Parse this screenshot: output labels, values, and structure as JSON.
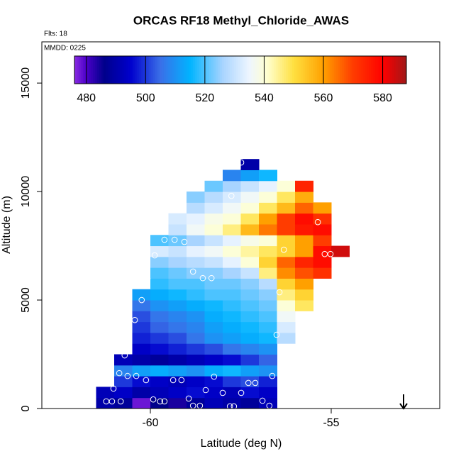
{
  "chart_data": {
    "type": "heatmap",
    "title": "ORCAS RF18 Methyl_Chloride_AWAS",
    "subtitle": "Flts: 18",
    "annotation": "MMDD: 0225",
    "x_label": "Latitude (deg N)",
    "y_label": "Altitude (m)",
    "xlim": [
      -63,
      -52
    ],
    "xticks": [
      -60,
      -55
    ],
    "ylim": [
      0,
      16900
    ],
    "yticks": [
      0,
      5000,
      10000,
      15000
    ],
    "zlim": [
      476,
      588
    ],
    "zticks": [
      480,
      500,
      520,
      540,
      560,
      580
    ],
    "colorscale": [
      {
        "value": 476,
        "color": "#8a2be2"
      },
      {
        "value": 480,
        "color": "#4b00c8"
      },
      {
        "value": 486,
        "color": "#00008b"
      },
      {
        "value": 495,
        "color": "#0000cd"
      },
      {
        "value": 505,
        "color": "#3a6fe8"
      },
      {
        "value": 515,
        "color": "#00b4ff"
      },
      {
        "value": 526,
        "color": "#a8d4ff"
      },
      {
        "value": 535,
        "color": "#eef6ff"
      },
      {
        "value": 541,
        "color": "#ffffd0"
      },
      {
        "value": 550,
        "color": "#ffe040"
      },
      {
        "value": 560,
        "color": "#ffa000"
      },
      {
        "value": 570,
        "color": "#ff3c00"
      },
      {
        "value": 580,
        "color": "#ff0000"
      },
      {
        "value": 588,
        "color": "#a01818"
      }
    ],
    "xbins": [
      -61.5,
      -61,
      -60.5,
      -60,
      -59.5,
      -59,
      -58.5,
      -58,
      -57.5,
      -57,
      -56.5,
      -56,
      -55.5,
      -55,
      -54.5
    ],
    "ybins": [
      0,
      500,
      1000,
      1500,
      2000,
      2500,
      3000,
      3500,
      4000,
      4500,
      5000,
      5500,
      6000,
      6500,
      7000,
      7500,
      8000,
      8500,
      9000,
      9500,
      10000,
      10500,
      11000,
      11500
    ],
    "z": [
      [
        490,
        488,
        478,
        486,
        484,
        488,
        492,
        490,
        488,
        492,
        null,
        null,
        null,
        null
      ],
      [
        492,
        494,
        490,
        492,
        494,
        496,
        494,
        492,
        496,
        494,
        null,
        null,
        null,
        null
      ],
      [
        null,
        500,
        496,
        494,
        492,
        494,
        496,
        500,
        502,
        498,
        null,
        null,
        null,
        null
      ],
      [
        null,
        508,
        512,
        514,
        512,
        510,
        514,
        516,
        512,
        510,
        null,
        null,
        null,
        null
      ],
      [
        null,
        492,
        490,
        488,
        490,
        492,
        494,
        496,
        500,
        504,
        null,
        null,
        null,
        null
      ],
      [
        null,
        null,
        494,
        496,
        498,
        500,
        502,
        506,
        508,
        510,
        null,
        null,
        null,
        null
      ],
      [
        null,
        null,
        498,
        500,
        502,
        506,
        510,
        512,
        514,
        516,
        528,
        null,
        null,
        null
      ],
      [
        null,
        null,
        500,
        504,
        506,
        508,
        512,
        514,
        516,
        518,
        532,
        null,
        null,
        null
      ],
      [
        null,
        null,
        502,
        506,
        508,
        510,
        514,
        516,
        518,
        520,
        536,
        null,
        null,
        null
      ],
      [
        null,
        null,
        506,
        510,
        512,
        514,
        516,
        518,
        520,
        522,
        540,
        548,
        null,
        null
      ],
      [
        null,
        null,
        512,
        514,
        516,
        518,
        520,
        520,
        522,
        524,
        546,
        552,
        null,
        null
      ],
      [
        null,
        null,
        null,
        518,
        520,
        520,
        522,
        522,
        524,
        528,
        552,
        560,
        null,
        null
      ],
      [
        null,
        null,
        null,
        520,
        522,
        524,
        524,
        526,
        530,
        546,
        562,
        568,
        572,
        null
      ],
      [
        null,
        null,
        null,
        524,
        526,
        528,
        530,
        534,
        540,
        552,
        566,
        574,
        578,
        null
      ],
      [
        null,
        null,
        null,
        532,
        530,
        534,
        536,
        540,
        544,
        548,
        552,
        560,
        578,
        584
      ],
      [
        null,
        null,
        null,
        520,
        522,
        526,
        530,
        534,
        538,
        540,
        552,
        560,
        570,
        null
      ],
      [
        null,
        null,
        null,
        null,
        530,
        536,
        540,
        546,
        556,
        564,
        570,
        576,
        578,
        null
      ],
      [
        null,
        null,
        null,
        null,
        532,
        534,
        538,
        540,
        548,
        560,
        570,
        578,
        572,
        null
      ],
      [
        null,
        null,
        null,
        null,
        null,
        528,
        532,
        536,
        540,
        548,
        556,
        566,
        560,
        null
      ],
      [
        null,
        null,
        null,
        null,
        null,
        524,
        528,
        532,
        536,
        540,
        548,
        558,
        null,
        null
      ],
      [
        null,
        null,
        null,
        null,
        null,
        null,
        522,
        526,
        530,
        534,
        540,
        574,
        null,
        null
      ],
      [
        null,
        null,
        null,
        null,
        null,
        null,
        null,
        508,
        512,
        516,
        null,
        null,
        null,
        null
      ],
      [
        null,
        null,
        null,
        null,
        null,
        null,
        null,
        null,
        490,
        null,
        null,
        null,
        null,
        null
      ]
    ],
    "points": {
      "x": [
        -57.49,
        -57.76,
        -59.61,
        -59.33,
        -59.06,
        -59.88,
        -58.82,
        -58.55,
        -58.31,
        -60.08,
        -60.24,
        -56.43,
        -60.43,
        -60.59,
        -56.51,
        -60.71,
        -55.37,
        -56.31,
        -55.18,
        -55.02,
        -60.86,
        -60.63,
        -60.39,
        -60.12,
        -59.37,
        -59.14,
        -58.24,
        -57.29,
        -57.1,
        -56.63,
        -61.02,
        -58.47,
        -57.49,
        -58.0,
        -61.22,
        -61.06,
        -60.82,
        -59.92,
        -59.61,
        -58.94,
        -58.82,
        -58.63,
        -57.8,
        -57.69,
        -56.9,
        -56.71,
        -59.73
      ],
      "y": [
        11340,
        9800,
        7780,
        7780,
        7680,
        7060,
        6310,
        6010,
        6010,
        5980,
        5000,
        5360,
        4080,
        3270,
        3400,
        2450,
        8590,
        7320,
        7120,
        7120,
        1630,
        1500,
        1500,
        1310,
        1310,
        1310,
        1470,
        1180,
        1180,
        1500,
        920,
        850,
        720,
        720,
        330,
        330,
        330,
        420,
        330,
        460,
        130,
        130,
        100,
        100,
        360,
        130,
        330
      ],
      "color": "#ffffff"
    }
  }
}
